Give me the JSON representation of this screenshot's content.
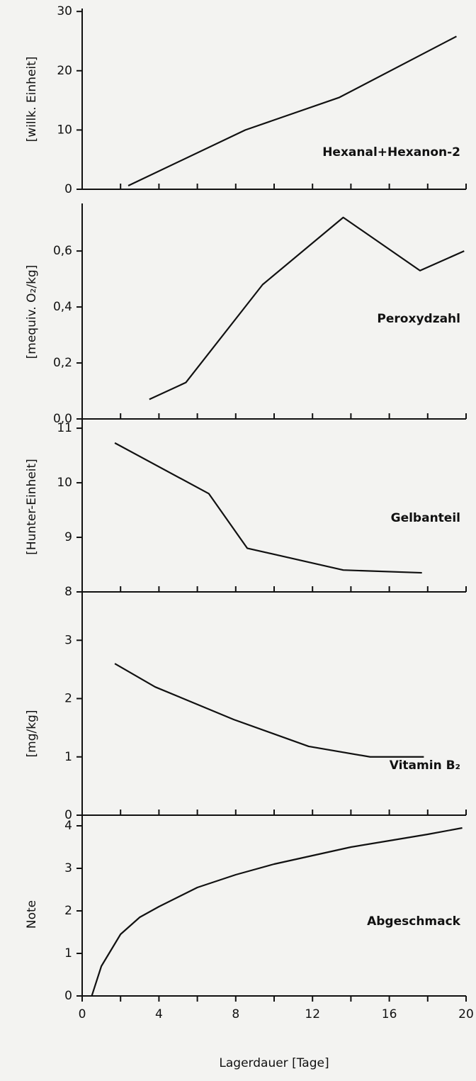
{
  "chart_data": [
    {
      "type": "line",
      "ylabel": "[willk. Einheit]",
      "xlim": [
        0,
        20
      ],
      "ylim": [
        0,
        30.5
      ],
      "yticks": [
        0,
        10,
        20,
        30
      ],
      "series": [
        {
          "name": "Hexanal+Hexanon-2",
          "color": "#111111",
          "x": [
            2.4,
            8.5,
            13.4,
            19.5
          ],
          "values": [
            0.6,
            10,
            15.5,
            25.8
          ]
        }
      ]
    },
    {
      "type": "line",
      "ylabel": "[mequiv. O₂/kg]",
      "xlim": [
        0,
        20
      ],
      "ylim": [
        0,
        0.77
      ],
      "yticks": [
        {
          "value": 0,
          "label": "0,0"
        },
        {
          "value": 0.2,
          "label": "0,2"
        },
        {
          "value": 0.4,
          "label": "0,4"
        },
        {
          "value": 0.6,
          "label": "0,6"
        }
      ],
      "series": [
        {
          "name": "Peroxydzahl",
          "color": "#111111",
          "x": [
            3.5,
            5.4,
            9.4,
            13.6,
            17.6,
            19.9
          ],
          "values": [
            0.07,
            0.13,
            0.48,
            0.72,
            0.53,
            0.6
          ]
        }
      ]
    },
    {
      "type": "line",
      "ylabel": "[Hunter-Einheit]",
      "xlim": [
        0,
        20
      ],
      "ylim": [
        8,
        11.17
      ],
      "yticks": [
        8,
        9,
        10,
        11
      ],
      "series": [
        {
          "name": "Gelbanteil",
          "color": "#111111",
          "x": [
            1.7,
            6.6,
            8.6,
            13.6,
            17.7
          ],
          "values": [
            10.73,
            9.8,
            8.8,
            8.4,
            8.35
          ]
        }
      ]
    },
    {
      "type": "line",
      "ylabel": "[mg/kg]",
      "xlim": [
        0,
        20
      ],
      "ylim": [
        0,
        3.83
      ],
      "yticks": [
        0,
        1,
        2,
        3
      ],
      "series": [
        {
          "name": "Vitamin B₂",
          "color": "#111111",
          "x": [
            1.7,
            3.8,
            7.9,
            11.8,
            15,
            17.8
          ],
          "values": [
            2.6,
            2.2,
            1.64,
            1.18,
            1.0,
            1.0
          ]
        }
      ]
    },
    {
      "type": "line",
      "ylabel": "Note",
      "xlabel": "Lagerdauer  [Tage]",
      "xlim": [
        0,
        20
      ],
      "ylim": [
        0,
        4.25
      ],
      "yticks": [
        0,
        1,
        2,
        3,
        4
      ],
      "xticks": [
        0,
        4,
        8,
        12,
        16,
        20
      ],
      "xminor": [
        2,
        6,
        10,
        14,
        18
      ],
      "series": [
        {
          "name": "Abgeschmack",
          "color": "#111111",
          "x": [
            0.5,
            1,
            2,
            3,
            4,
            6,
            8,
            10,
            12,
            14,
            16,
            18,
            19.8
          ],
          "values": [
            0,
            0.7,
            1.45,
            1.85,
            2.1,
            2.55,
            2.85,
            3.1,
            3.3,
            3.5,
            3.65,
            3.8,
            3.95
          ]
        }
      ]
    }
  ]
}
